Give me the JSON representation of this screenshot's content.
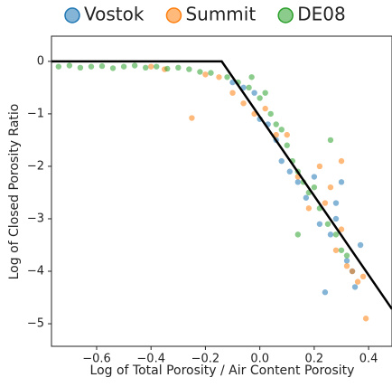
{
  "chart_data": {
    "type": "scatter",
    "x_label": "Log of Total Porosity / Air Content Porosity",
    "y_label": "Log of Closed Porosity Ratio",
    "xlim": [
      -0.766,
      0.486
    ],
    "ylim": [
      -5.43,
      0.48
    ],
    "xticks": [
      {
        "value": -0.6,
        "label": "−0.6"
      },
      {
        "value": -0.4,
        "label": "−0.4"
      },
      {
        "value": -0.2,
        "label": "−0.2"
      },
      {
        "value": 0,
        "label": "0.0"
      },
      0.2,
      0.4
    ],
    "yticks": [
      0,
      {
        "value": -1,
        "label": "−1"
      },
      {
        "value": -2,
        "label": "−2"
      },
      {
        "value": -3,
        "label": "−3"
      },
      {
        "value": -4,
        "label": "−4"
      },
      {
        "value": -5,
        "label": "−5"
      }
    ],
    "series": [
      {
        "name": "Vostok",
        "color": "#1f77b4",
        "x": [
          -0.1,
          -0.06,
          -0.02,
          0.0,
          0.03,
          0.06,
          0.08,
          0.11,
          0.14,
          0.17,
          0.2,
          0.22,
          0.24,
          0.26,
          0.28,
          0.3,
          0.32,
          0.34,
          0.35,
          0.37,
          0.28
        ],
        "values": [
          -0.4,
          -0.5,
          -0.6,
          -1.1,
          -1.2,
          -1.5,
          -1.9,
          -2.1,
          -2.3,
          -2.6,
          -2.2,
          -3.1,
          -4.4,
          -3.3,
          -2.7,
          -2.3,
          -3.8,
          -4.0,
          -4.3,
          -3.5,
          -3.0
        ]
      },
      {
        "name": "Summit",
        "color": "#ff7f0e",
        "x": [
          -0.4,
          -0.35,
          -0.25,
          -0.2,
          -0.15,
          -0.1,
          -0.06,
          -0.02,
          0.02,
          0.06,
          0.1,
          0.14,
          0.18,
          0.22,
          0.24,
          0.26,
          0.28,
          0.3,
          0.32,
          0.34,
          0.36,
          0.38,
          0.39,
          0.3
        ],
        "values": [
          -0.1,
          -0.15,
          -1.08,
          -0.25,
          -0.3,
          -0.6,
          -0.8,
          -1.0,
          -0.9,
          -1.4,
          -1.4,
          -2.2,
          -2.8,
          -2.0,
          -2.7,
          -2.4,
          -3.6,
          -3.2,
          -3.9,
          -4.0,
          -4.2,
          -4.1,
          -4.9,
          -1.9
        ]
      },
      {
        "name": "DE08",
        "color": "#2ca02c",
        "x": [
          -0.74,
          -0.7,
          -0.66,
          -0.62,
          -0.58,
          -0.54,
          -0.5,
          -0.46,
          -0.42,
          -0.38,
          -0.34,
          -0.3,
          -0.26,
          -0.22,
          -0.18,
          -0.12,
          -0.08,
          -0.04,
          0.0,
          0.02,
          0.04,
          0.06,
          0.08,
          0.1,
          0.12,
          0.14,
          0.16,
          0.18,
          0.2,
          0.22,
          0.25,
          0.28,
          0.3,
          0.32,
          0.14,
          0.26,
          -0.03
        ],
        "values": [
          -0.1,
          -0.08,
          -0.12,
          -0.1,
          -0.09,
          -0.13,
          -0.1,
          -0.08,
          -0.12,
          -0.1,
          -0.14,
          -0.12,
          -0.15,
          -0.2,
          -0.22,
          -0.3,
          -0.4,
          -0.5,
          -0.7,
          -0.6,
          -1.0,
          -1.2,
          -1.3,
          -1.6,
          -1.9,
          -2.1,
          -2.3,
          -2.5,
          -2.4,
          -2.8,
          -3.1,
          -3.3,
          -3.6,
          -3.7,
          -3.3,
          -1.5,
          -0.3
        ]
      }
    ],
    "model_line": {
      "color": "#000000",
      "x": [
        -0.766,
        -0.14,
        0.486
      ],
      "values": [
        0,
        0,
        -4.72
      ]
    }
  }
}
